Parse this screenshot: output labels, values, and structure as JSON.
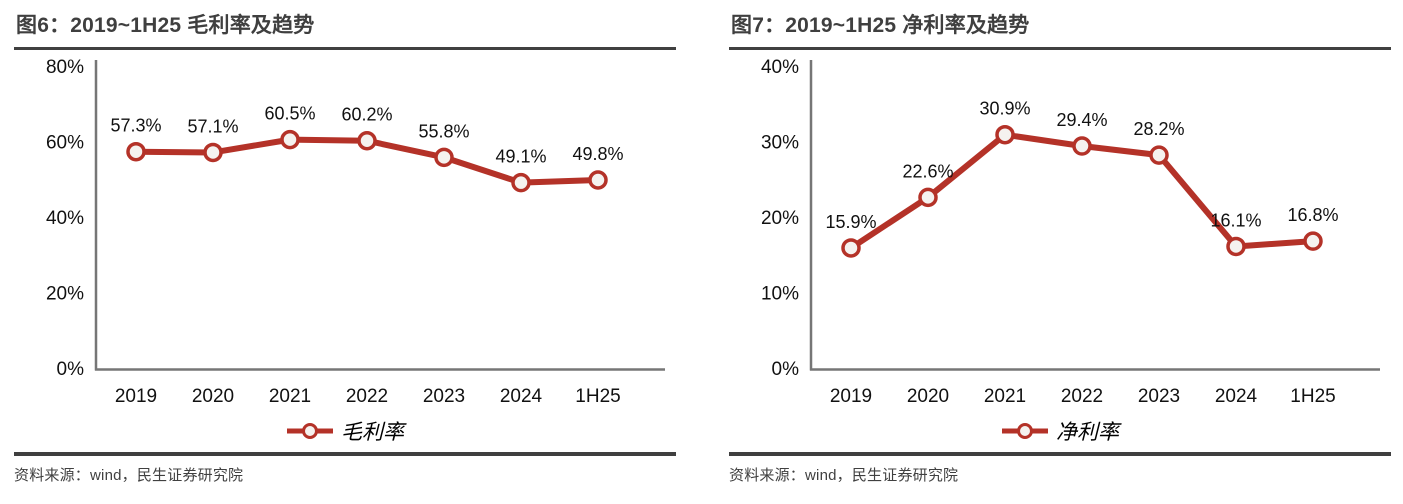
{
  "colors": {
    "line_red": "#B43228",
    "marker_fill": "#F5F2EF",
    "axis_gray": "#767676",
    "text_color": "#111111",
    "title_color": "#3F3F3F",
    "rule_color": "#3F3F3F",
    "source_color": "#404040",
    "background": "#FFFFFF"
  },
  "chart_data": [
    {
      "type": "line",
      "title": "图6：2019~1H25 毛利率及趋势",
      "categories": [
        "2019",
        "2020",
        "2021",
        "2022",
        "2023",
        "2024",
        "1H25"
      ],
      "series": [
        {
          "name": "毛利率",
          "values": [
            57.3,
            57.1,
            60.5,
            60.2,
            55.8,
            49.1,
            49.8
          ]
        }
      ],
      "data_labels": [
        "57.3%",
        "57.1%",
        "60.5%",
        "60.2%",
        "55.8%",
        "49.1%",
        "49.8%"
      ],
      "xlabel": "",
      "ylabel": "",
      "ylim": [
        0,
        80
      ],
      "yticks": [
        0,
        20,
        40,
        60,
        80
      ],
      "ytick_labels": [
        "0%",
        "20%",
        "40%",
        "60%",
        "80%"
      ],
      "grid": false,
      "legend_position": "bottom",
      "source": "资料来源：wind，民生证券研究院"
    },
    {
      "type": "line",
      "title": "图7：2019~1H25 净利率及趋势",
      "categories": [
        "2019",
        "2020",
        "2021",
        "2022",
        "2023",
        "2024",
        "1H25"
      ],
      "series": [
        {
          "name": "净利率",
          "values": [
            15.9,
            22.6,
            30.9,
            29.4,
            28.2,
            16.1,
            16.8
          ]
        }
      ],
      "data_labels": [
        "15.9%",
        "22.6%",
        "30.9%",
        "29.4%",
        "28.2%",
        "16.1%",
        "16.8%"
      ],
      "xlabel": "",
      "ylabel": "",
      "ylim": [
        0,
        40
      ],
      "yticks": [
        0,
        10,
        20,
        30,
        40
      ],
      "ytick_labels": [
        "0%",
        "10%",
        "20%",
        "30%",
        "40%"
      ],
      "grid": false,
      "legend_position": "bottom",
      "source": "资料来源：wind，民生证券研究院"
    }
  ]
}
